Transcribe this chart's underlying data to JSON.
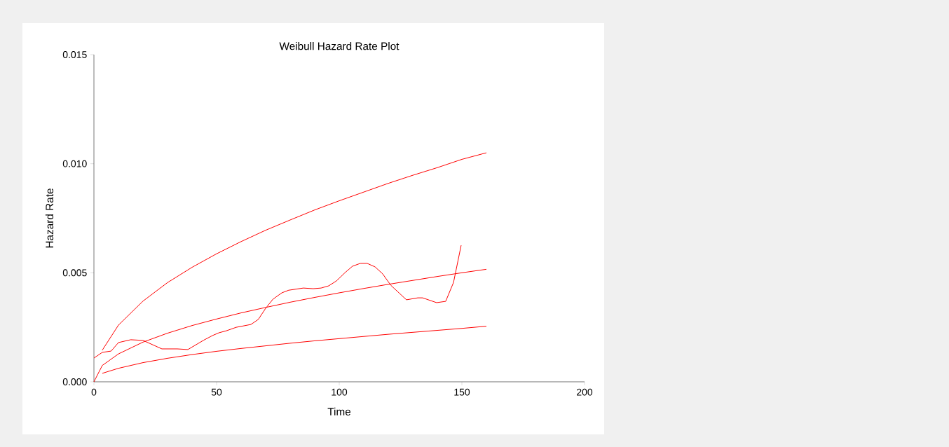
{
  "chart_data": {
    "type": "line",
    "title": "Weibull Hazard Rate Plot",
    "xlabel": "Time",
    "ylabel": "Hazard Rate",
    "xlim": [
      0,
      200
    ],
    "xticks": [
      0,
      50,
      100,
      150,
      200
    ],
    "ylim": [
      0,
      0.015
    ],
    "yticks": [
      {
        "value": 0,
        "label": "0.000"
      },
      {
        "value": 0.005,
        "label": "0.005"
      },
      {
        "value": 0.01,
        "label": "0.010"
      },
      {
        "value": 0.015,
        "label": "0.015"
      }
    ],
    "series": [
      {
        "color": "#ff0000",
        "x": [
          3.4,
          10,
          20,
          30,
          40,
          50,
          60,
          70,
          80,
          90,
          100,
          110,
          120,
          130,
          140,
          150,
          160
        ],
        "values": [
          0.00145,
          0.0026,
          0.0037,
          0.00455,
          0.00525,
          0.00587,
          0.00643,
          0.00695,
          0.00742,
          0.00788,
          0.0083,
          0.0087,
          0.0091,
          0.00947,
          0.00982,
          0.0102,
          0.0105
        ]
      },
      {
        "color": "#ff0000",
        "x": [
          0,
          3.4,
          10,
          20,
          30,
          40,
          50,
          60,
          70,
          80,
          90,
          100,
          110,
          120,
          130,
          140,
          150,
          160
        ],
        "values": [
          0,
          0.00075,
          0.00128,
          0.00182,
          0.00223,
          0.00258,
          0.00288,
          0.00316,
          0.00341,
          0.00365,
          0.00387,
          0.00408,
          0.00428,
          0.00447,
          0.00465,
          0.00483,
          0.005,
          0.00516
        ]
      },
      {
        "color": "#ff0000",
        "x": [
          3.4,
          10,
          20,
          30,
          40,
          50,
          60,
          70,
          80,
          90,
          100,
          110,
          120,
          130,
          140,
          150,
          160
        ],
        "values": [
          0.00039,
          0.00062,
          0.00088,
          0.00108,
          0.00125,
          0.0014,
          0.00153,
          0.00165,
          0.00177,
          0.00188,
          0.00198,
          0.00208,
          0.00218,
          0.00227,
          0.00236,
          0.00245,
          0.00255
        ]
      },
      {
        "color": "#ff0000",
        "x": [
          0,
          3.4,
          7,
          10,
          15,
          20,
          27.7,
          34,
          38.3,
          44.6,
          48.3,
          51,
          54,
          58,
          64,
          67,
          70,
          73,
          76.6,
          79.4,
          85.4,
          89.4,
          92.6,
          95.7,
          98.9,
          102.3,
          105.4,
          108.6,
          111.4,
          114.6,
          117.7,
          121,
          127.4,
          132,
          134,
          139.7,
          143.4,
          146.6,
          149.7
        ],
        "values": [
          0.00109,
          0.00135,
          0.00141,
          0.0018,
          0.00193,
          0.0019,
          0.00151,
          0.00151,
          0.00148,
          0.0019,
          0.00212,
          0.00225,
          0.00234,
          0.0025,
          0.00263,
          0.00286,
          0.00337,
          0.00379,
          0.00408,
          0.0042,
          0.0043,
          0.00427,
          0.0043,
          0.0044,
          0.00463,
          0.005,
          0.0053,
          0.00543,
          0.00543,
          0.00527,
          0.00495,
          0.00443,
          0.00376,
          0.00385,
          0.00385,
          0.00363,
          0.00369,
          0.00456,
          0.00626
        ]
      }
    ]
  }
}
